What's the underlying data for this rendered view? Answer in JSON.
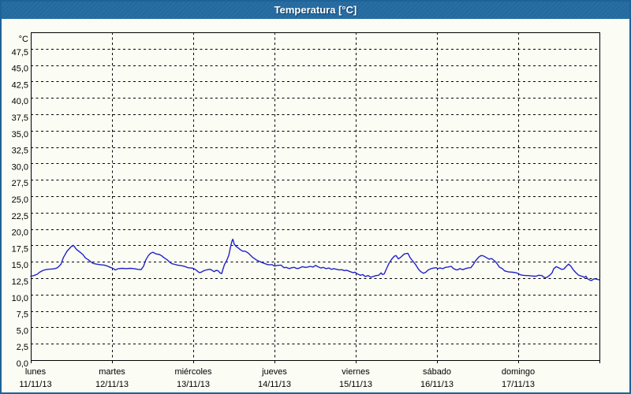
{
  "window": {
    "title": "Temperatura [°C]"
  },
  "colors": {
    "titlebar": "#24689d",
    "window_border": "#1d6397",
    "background": "#fbfcf4",
    "grid": "#000000",
    "axis_text": "#000000",
    "line": "#2222cc"
  },
  "chart_data": {
    "type": "line",
    "title": "Temperatura [°C]",
    "grid": true,
    "legend": "none",
    "y_axis": {
      "unit_label": "°C",
      "min": 0,
      "max": 50,
      "tick_step": 2.5,
      "tick_labels": [
        "47,5",
        "45,0",
        "42,5",
        "40,0",
        "37,5",
        "35,0",
        "32,5",
        "30,0",
        "27,5",
        "25,0",
        "22,5",
        "20,0",
        "17,5",
        "15,0",
        "12,5",
        "10,0",
        "7,5",
        "5,0",
        "2,5",
        "0,0"
      ]
    },
    "x_axis": {
      "hours_total": 168,
      "days": [
        {
          "name": "lunes",
          "date": "11/11/13"
        },
        {
          "name": "martes",
          "date": "12/11/13"
        },
        {
          "name": "miércoles",
          "date": "13/11/13"
        },
        {
          "name": "jueves",
          "date": "14/11/13"
        },
        {
          "name": "viernes",
          "date": "15/11/13"
        },
        {
          "name": "sábado",
          "date": "16/11/13"
        },
        {
          "name": "domingo",
          "date": "17/11/13"
        }
      ]
    },
    "series": [
      {
        "name": "Temperatura",
        "unit": "°C",
        "x_unit": "hours since 11/11/13 00:00",
        "points": [
          [
            0,
            12.8
          ],
          [
            0.9,
            12.9
          ],
          [
            1.9,
            13.1
          ],
          [
            2.6,
            13.4
          ],
          [
            3.7,
            13.7
          ],
          [
            4.9,
            13.85
          ],
          [
            6.1,
            13.9
          ],
          [
            7.2,
            13.95
          ],
          [
            7.9,
            14.1
          ],
          [
            8.9,
            14.6
          ],
          [
            9.6,
            15.6
          ],
          [
            10.7,
            16.6
          ],
          [
            11.9,
            17.3
          ],
          [
            12.6,
            17.5
          ],
          [
            13.5,
            16.9
          ],
          [
            14.7,
            16.4
          ],
          [
            15.4,
            16.1
          ],
          [
            16.1,
            15.6
          ],
          [
            17,
            15.3
          ],
          [
            17.7,
            15
          ],
          [
            18.4,
            14.75
          ],
          [
            19.3,
            14.65
          ],
          [
            20.5,
            14.55
          ],
          [
            21.7,
            14.5
          ],
          [
            22.6,
            14.35
          ],
          [
            23.5,
            14.15
          ],
          [
            24.3,
            14
          ],
          [
            24.9,
            13.75
          ],
          [
            25.9,
            13.95
          ],
          [
            27,
            14
          ],
          [
            28.2,
            13.95
          ],
          [
            29.4,
            14
          ],
          [
            30.5,
            13.95
          ],
          [
            31.7,
            13.85
          ],
          [
            32.6,
            13.8
          ],
          [
            33.3,
            14.3
          ],
          [
            34,
            15.3
          ],
          [
            34.7,
            15.9
          ],
          [
            35.4,
            16.3
          ],
          [
            36.1,
            16.45
          ],
          [
            37,
            16.2
          ],
          [
            38,
            16.1
          ],
          [
            38.7,
            15.9
          ],
          [
            39.4,
            15.6
          ],
          [
            40.3,
            15.3
          ],
          [
            41,
            14.95
          ],
          [
            41.7,
            14.7
          ],
          [
            42.6,
            14.6
          ],
          [
            43.3,
            14.5
          ],
          [
            44,
            14.45
          ],
          [
            45,
            14.35
          ],
          [
            45.7,
            14.25
          ],
          [
            46.4,
            14.1
          ],
          [
            47.3,
            14.05
          ],
          [
            48,
            14
          ],
          [
            48.7,
            13.8
          ],
          [
            49.4,
            13.5
          ],
          [
            49.8,
            13.35
          ],
          [
            50.3,
            13.4
          ],
          [
            51,
            13.6
          ],
          [
            51.5,
            13.7
          ],
          [
            52.3,
            13.8
          ],
          [
            52.8,
            13.85
          ],
          [
            53.3,
            13.8
          ],
          [
            53.8,
            13.6
          ],
          [
            54.2,
            13.5
          ],
          [
            54.8,
            13.7
          ],
          [
            55.4,
            13.6
          ],
          [
            55.9,
            13.3
          ],
          [
            56.4,
            13.2
          ],
          [
            56.7,
            13.7
          ],
          [
            57.2,
            14.55
          ],
          [
            57.9,
            15.2
          ],
          [
            58.5,
            16
          ],
          [
            59,
            17.2
          ],
          [
            59.4,
            18.1
          ],
          [
            59.7,
            18.45
          ],
          [
            60.1,
            17.7
          ],
          [
            60.6,
            17.35
          ],
          [
            61.3,
            17.1
          ],
          [
            62,
            16.8
          ],
          [
            62.7,
            16.6
          ],
          [
            63.1,
            16.65
          ],
          [
            63.6,
            16.55
          ],
          [
            64.3,
            16.3
          ],
          [
            65.5,
            15.7
          ],
          [
            66.6,
            15.3
          ],
          [
            67.8,
            15
          ],
          [
            69,
            14.75
          ],
          [
            70.1,
            14.55
          ],
          [
            71.3,
            14.55
          ],
          [
            72,
            14.35
          ],
          [
            72.9,
            14.45
          ],
          [
            73.9,
            14.5
          ],
          [
            74.8,
            14.1
          ],
          [
            75.5,
            14.15
          ],
          [
            76.4,
            13.95
          ],
          [
            77.1,
            14.1
          ],
          [
            77.8,
            14.15
          ],
          [
            78.7,
            13.95
          ],
          [
            79.4,
            14.05
          ],
          [
            80.2,
            14.25
          ],
          [
            81.1,
            14.15
          ],
          [
            81.8,
            14.2
          ],
          [
            82.5,
            14.3
          ],
          [
            83.4,
            14.2
          ],
          [
            84.1,
            14.45
          ],
          [
            84.8,
            14.25
          ],
          [
            85.7,
            14.05
          ],
          [
            86.4,
            14.15
          ],
          [
            87.2,
            13.95
          ],
          [
            88.1,
            14.05
          ],
          [
            88.8,
            13.85
          ],
          [
            89.5,
            13.95
          ],
          [
            90.4,
            13.85
          ],
          [
            91.1,
            13.75
          ],
          [
            91.8,
            13.8
          ],
          [
            92.7,
            13.65
          ],
          [
            93.4,
            13.7
          ],
          [
            94.1,
            13.55
          ],
          [
            95.1,
            13.35
          ],
          [
            95.8,
            13.4
          ],
          [
            96.5,
            13.15
          ],
          [
            97.4,
            12.95
          ],
          [
            98.1,
            13.05
          ],
          [
            98.8,
            12.75
          ],
          [
            99.7,
            12.9
          ],
          [
            100.4,
            12.65
          ],
          [
            101.1,
            12.75
          ],
          [
            102,
            12.9
          ],
          [
            102.8,
            12.95
          ],
          [
            103.5,
            13.3
          ],
          [
            103.9,
            13.05
          ],
          [
            104.4,
            13.15
          ],
          [
            105.1,
            13.95
          ],
          [
            105.8,
            14.75
          ],
          [
            106.7,
            15.45
          ],
          [
            107.4,
            15.85
          ],
          [
            107.9,
            15.95
          ],
          [
            108.6,
            15.45
          ],
          [
            109.3,
            15.7
          ],
          [
            110.4,
            16.2
          ],
          [
            111.4,
            16.3
          ],
          [
            112.1,
            15.6
          ],
          [
            112.8,
            15.15
          ],
          [
            113.7,
            14.55
          ],
          [
            114.4,
            13.95
          ],
          [
            115.1,
            13.55
          ],
          [
            116,
            13.25
          ],
          [
            116.7,
            13.4
          ],
          [
            117.4,
            13.75
          ],
          [
            118.3,
            13.95
          ],
          [
            119.1,
            14.05
          ],
          [
            119.8,
            14.1
          ],
          [
            120.2,
            13.95
          ],
          [
            120.9,
            14.05
          ],
          [
            121.8,
            13.95
          ],
          [
            122.5,
            14.15
          ],
          [
            123.2,
            14.2
          ],
          [
            124.2,
            14.3
          ],
          [
            124.9,
            13.95
          ],
          [
            125.6,
            13.8
          ],
          [
            126,
            13.75
          ],
          [
            126.7,
            13.95
          ],
          [
            127.7,
            13.8
          ],
          [
            128.4,
            13.95
          ],
          [
            129.1,
            14.05
          ],
          [
            130,
            14.1
          ],
          [
            130.7,
            14.55
          ],
          [
            131.4,
            15.15
          ],
          [
            132.3,
            15.7
          ],
          [
            133,
            15.95
          ],
          [
            133.7,
            15.9
          ],
          [
            134.7,
            15.6
          ],
          [
            135.4,
            15.4
          ],
          [
            136.1,
            15.5
          ],
          [
            137,
            15.15
          ],
          [
            137.7,
            14.75
          ],
          [
            138.4,
            14.2
          ],
          [
            139.3,
            13.95
          ],
          [
            140,
            13.6
          ],
          [
            141.2,
            13.45
          ],
          [
            142.4,
            13.4
          ],
          [
            143.5,
            13.3
          ],
          [
            144.7,
            13
          ],
          [
            145.4,
            12.95
          ],
          [
            146.3,
            12.9
          ],
          [
            147,
            12.9
          ],
          [
            147.7,
            12.85
          ],
          [
            148.6,
            12.8
          ],
          [
            149.3,
            12.8
          ],
          [
            150,
            12.95
          ],
          [
            151,
            12.9
          ],
          [
            151.7,
            12.6
          ],
          [
            152.4,
            12.6
          ],
          [
            153.3,
            12.95
          ],
          [
            154,
            13.3
          ],
          [
            154.5,
            13.95
          ],
          [
            155.2,
            14.25
          ],
          [
            155.9,
            14.1
          ],
          [
            156.8,
            13.85
          ],
          [
            157.5,
            13.9
          ],
          [
            158.2,
            14.3
          ],
          [
            158.9,
            14.65
          ],
          [
            159.6,
            14.3
          ],
          [
            160.3,
            13.75
          ],
          [
            161,
            13.35
          ],
          [
            161.7,
            13
          ],
          [
            162.4,
            12.85
          ],
          [
            163.1,
            12.75
          ],
          [
            163.5,
            12.6
          ],
          [
            164,
            12.8
          ],
          [
            164.5,
            12.4
          ],
          [
            165.2,
            12.2
          ],
          [
            165.7,
            12.15
          ],
          [
            166.4,
            12.4
          ],
          [
            167.1,
            12.35
          ],
          [
            167.5,
            12.3
          ],
          [
            168,
            12.25
          ]
        ]
      }
    ]
  }
}
